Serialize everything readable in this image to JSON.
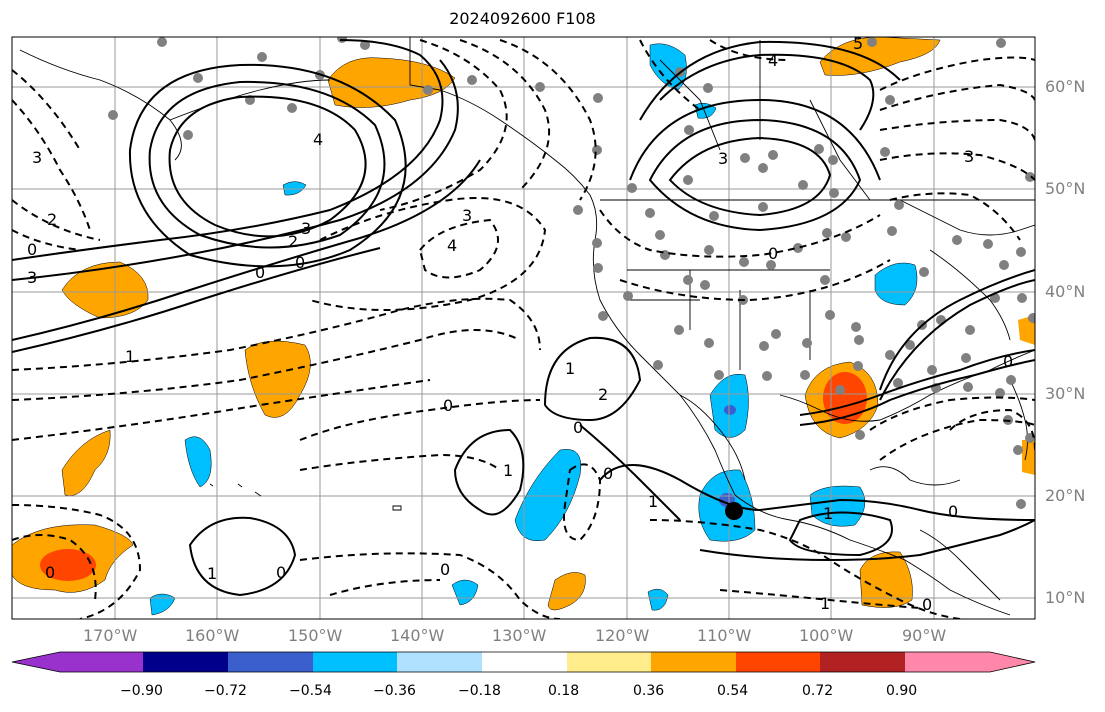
{
  "title": "2024092600 F108",
  "lat_labels": [
    "60°N",
    "50°N",
    "40°N",
    "30°N",
    "20°N",
    "10°N"
  ],
  "lon_labels": [
    "170°W",
    "160°W",
    "150°W",
    "140°W",
    "130°W",
    "120°W",
    "110°W",
    "100°W",
    "90°W"
  ],
  "colorbar": {
    "ticks": [
      "−0.90",
      "−0.72",
      "−0.54",
      "−0.36",
      "−0.18",
      "0.18",
      "0.36",
      "0.54",
      "0.72",
      "0.90"
    ],
    "colors": [
      "#9932cc",
      "#00008b",
      "#3a5fcd",
      "#00bfff",
      "#b0e0ff",
      "#ffffff",
      "#ffec8b",
      "#ffa500",
      "#ff4500",
      "#b22222",
      "#ff88aa"
    ]
  },
  "contour_labels": {
    "c5_top": "5",
    "c4_top": "4",
    "c3_top": "3",
    "c4_nw": "4",
    "c3_nw": "3",
    "c2_nw": "2",
    "c0_nw": "0",
    "c1_nw": "1",
    "c3_sw": "3",
    "c0_a": "0",
    "c0_b": "0",
    "cm2_a": "2",
    "cm3_a": "3",
    "cm4_a": "4",
    "c0_c": "0",
    "c2_c": "2",
    "c1_c": "1",
    "c0_d": "0",
    "c1_d": "1",
    "c0_e": "0",
    "c1_e": "1",
    "c0_f": "0",
    "c0_g": "0",
    "c1_h": "1",
    "c0_i": "0",
    "c1_j": "1",
    "c0_k": "0",
    "c3_ne": "3",
    "c0_ne": "0",
    "c1_ne": "1",
    "c0_ne2": "0",
    "c3_far": "3",
    "c0_far": "0"
  }
}
